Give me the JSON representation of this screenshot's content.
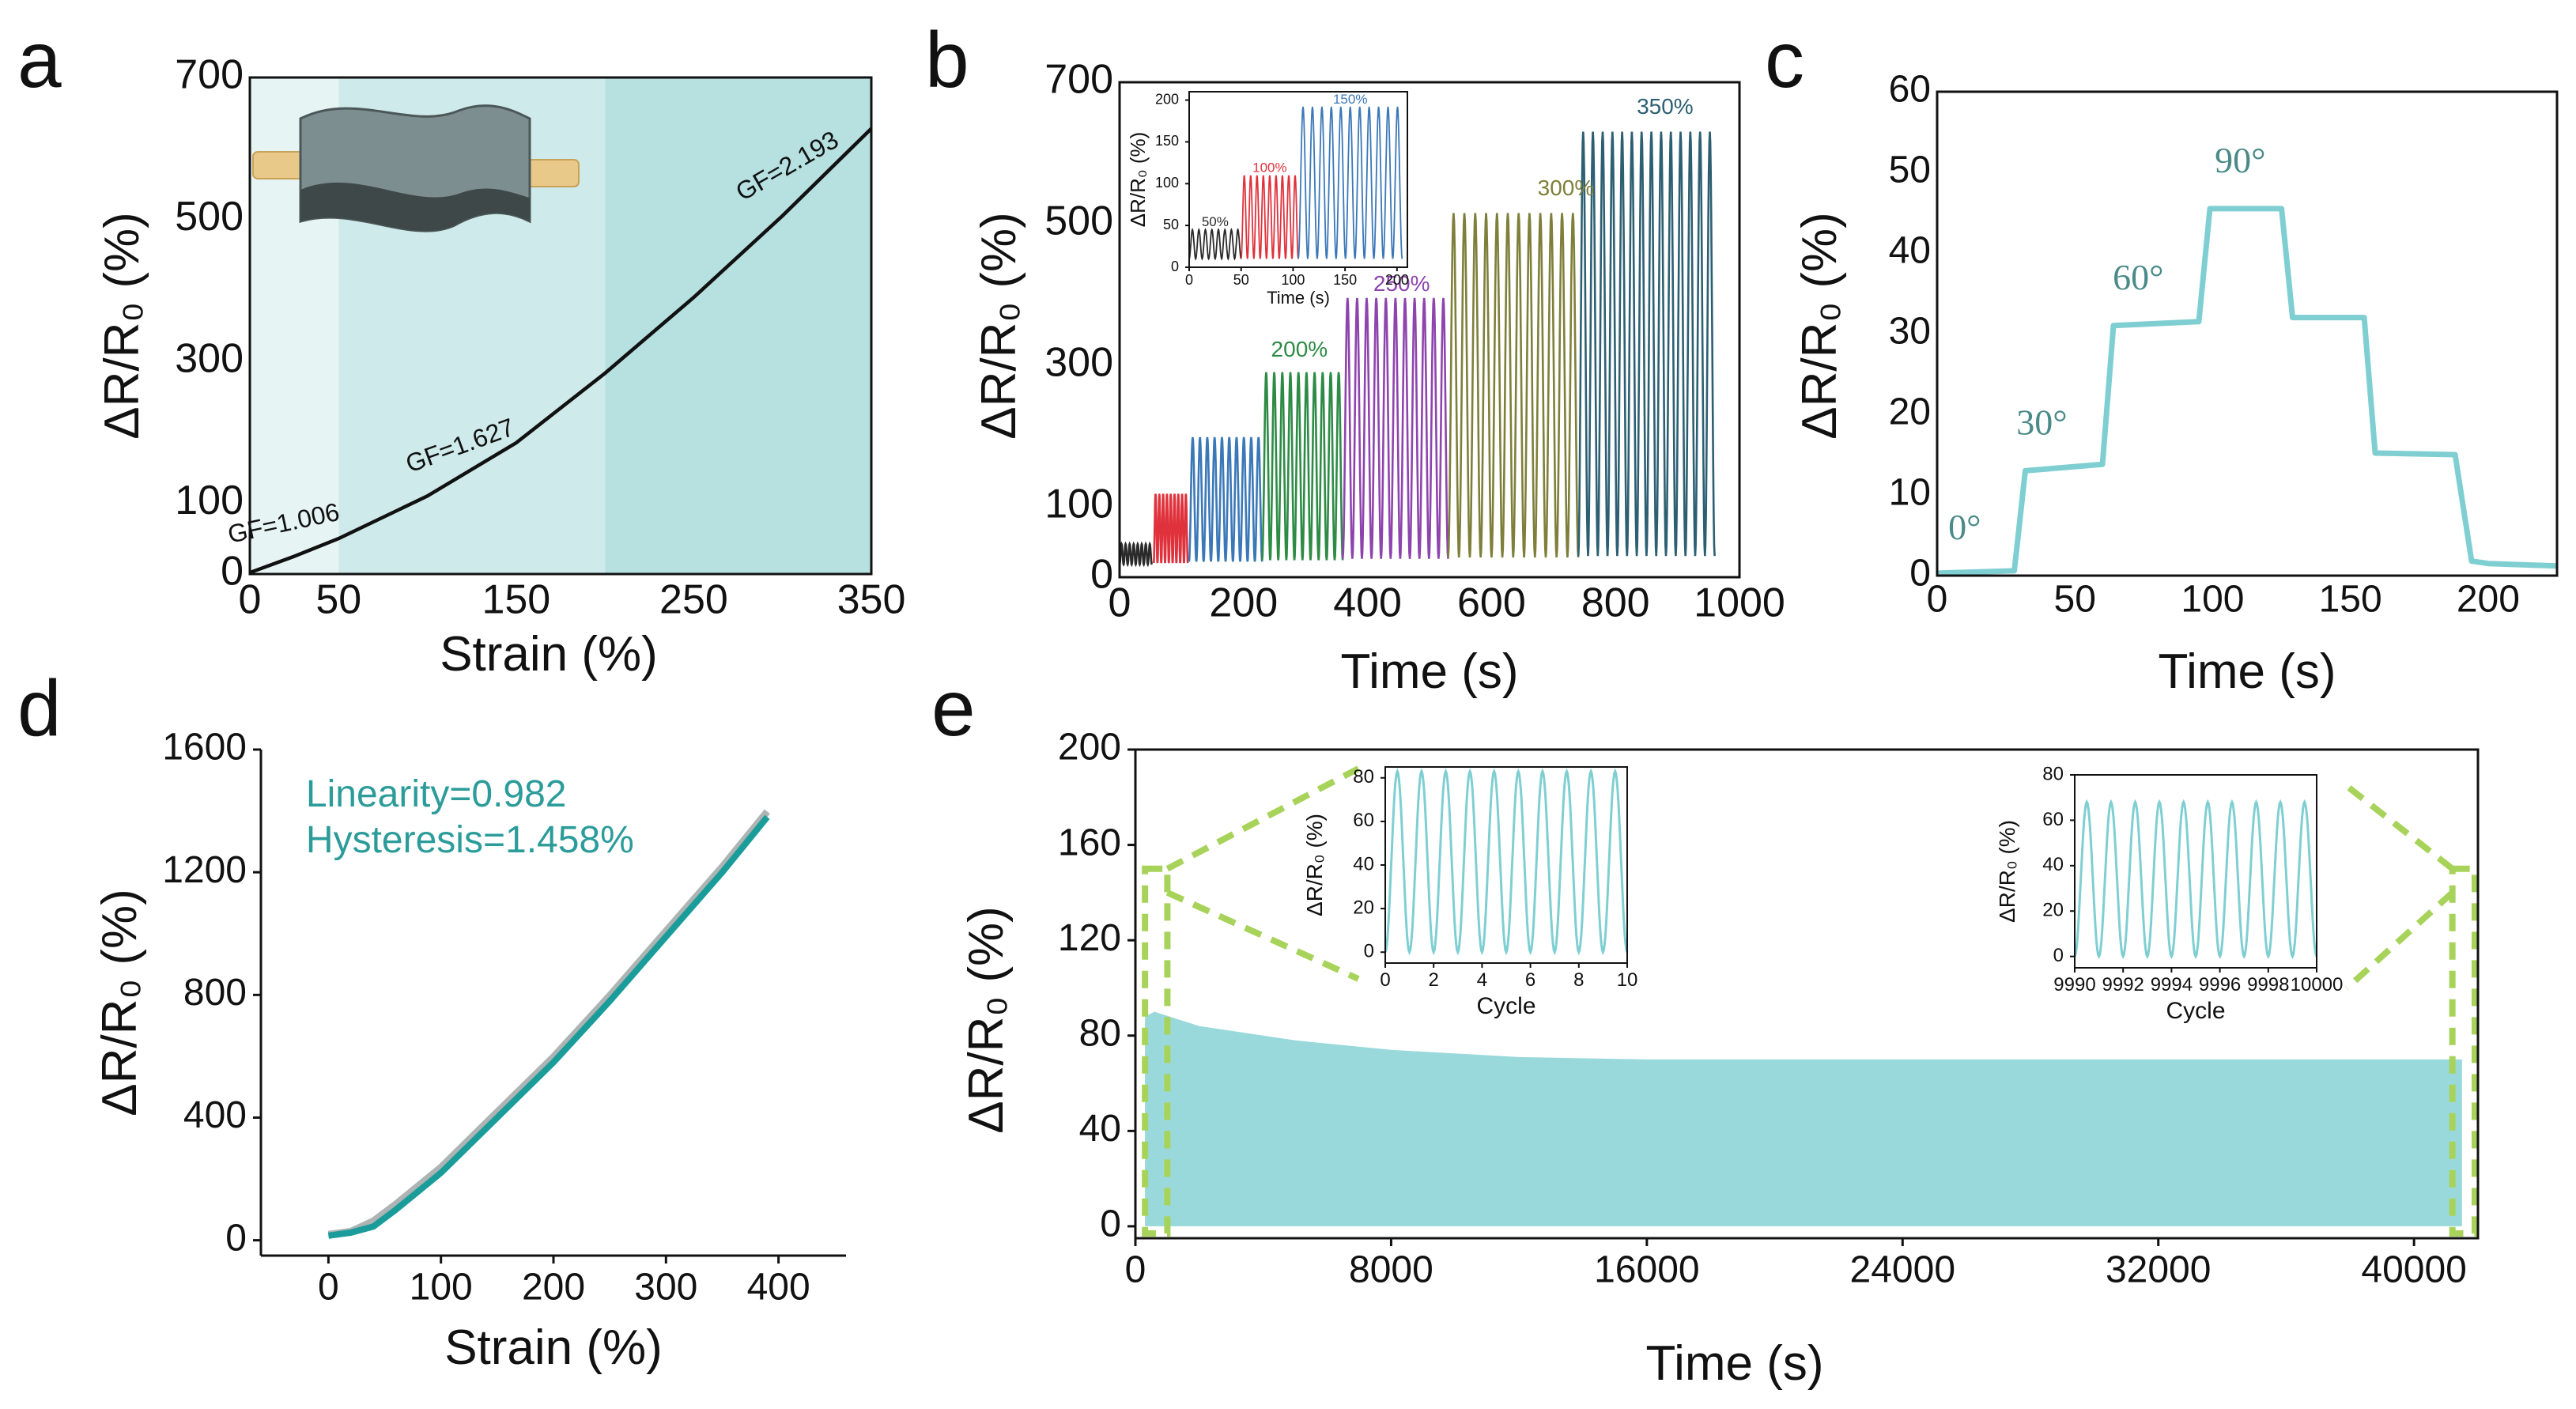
{
  "colors": {
    "teal": "#7fcfd2",
    "teal_dark": "#1a9d9a",
    "teal_label": "#2b9c9a",
    "shade1": "#e7f4f4",
    "shade2": "#cfeaea",
    "shade3": "#b7e0e0",
    "green_dash": "#a8d35a",
    "angle_label": "#4a8a88",
    "s50": "#2a2a2a",
    "s100": "#e0323c",
    "s150": "#3b78b8",
    "s200": "#2e8b46",
    "s250": "#8e44ad",
    "s300": "#7e7f3a",
    "s350": "#2d5f72"
  },
  "chart_data": [
    {
      "id": "a",
      "type": "line",
      "panel_label": "a",
      "xlabel": "Strain (%)",
      "ylabel": "ΔR/R₀ (%)",
      "xlim": [
        0,
        350
      ],
      "ylim": [
        0,
        700
      ],
      "xticks": [
        0,
        50,
        150,
        250,
        350
      ],
      "yticks": [
        0,
        100,
        300,
        500,
        700
      ],
      "regions": [
        [
          0,
          50
        ],
        [
          50,
          200
        ],
        [
          200,
          350
        ]
      ],
      "x": [
        0,
        25,
        50,
        100,
        150,
        200,
        250,
        300,
        350
      ],
      "y": [
        2,
        25,
        50,
        110,
        185,
        283,
        390,
        505,
        628
      ],
      "annotations": [
        "GF=1.006",
        "GF=1.627",
        "GF=2.193"
      ],
      "annotation_positions": [
        [
          20,
          60
        ],
        [
          120,
          170
        ],
        [
          305,
          565
        ]
      ]
    },
    {
      "id": "b",
      "type": "line",
      "panel_label": "b",
      "xlabel": "Time (s)",
      "ylabel": "ΔR/R₀ (%)",
      "xlim": [
        0,
        1000
      ],
      "ylim": [
        0,
        700
      ],
      "xticks": [
        0,
        200,
        400,
        600,
        800,
        1000
      ],
      "yticks": [
        0,
        100,
        300,
        500,
        700
      ],
      "series": [
        {
          "name": "50%",
          "t": [
            0,
            52
          ],
          "peak": 47,
          "cycles": 8
        },
        {
          "name": "100%",
          "t": [
            55,
            110
          ],
          "peak": 118,
          "cycles": 9
        },
        {
          "name": "150%",
          "t": [
            112,
            230
          ],
          "peak": 198,
          "cycles": 10
        },
        {
          "name": "200%",
          "t": [
            230,
            360
          ],
          "peak": 290,
          "cycles": 10
        },
        {
          "name": "250%",
          "t": [
            360,
            530
          ],
          "peak": 395,
          "cycles": 11
        },
        {
          "name": "300%",
          "t": [
            530,
            740
          ],
          "peak": 515,
          "cycles": 12
        },
        {
          "name": "350%",
          "t": [
            740,
            960
          ],
          "peak": 630,
          "cycles": 14
        }
      ],
      "label_positions": [
        [
          880,
          655
        ],
        [
          720,
          540
        ],
        [
          455,
          405
        ],
        [
          290,
          312
        ]
      ],
      "inset": {
        "xlabel": "Time (s)",
        "ylabel": "ΔR/R₀ (%)",
        "xlim": [
          0,
          210
        ],
        "ylim": [
          0,
          210
        ],
        "xticks": [
          0,
          50,
          100,
          150,
          200
        ],
        "yticks": [
          0,
          50,
          100,
          150,
          200
        ],
        "series": [
          {
            "name": "50%",
            "t": [
              0,
              50
            ],
            "peak": 45,
            "cycles": 8
          },
          {
            "name": "100%",
            "t": [
              50,
              105
            ],
            "peak": 110,
            "cycles": 9
          },
          {
            "name": "150%",
            "t": [
              105,
              205
            ],
            "peak": 192,
            "cycles": 11
          }
        ]
      }
    },
    {
      "id": "c",
      "type": "line",
      "panel_label": "c",
      "xlabel": "Time (s)",
      "ylabel": "ΔR/R₀ (%)",
      "xlim": [
        0,
        225
      ],
      "ylim": [
        0,
        60
      ],
      "xticks": [
        0,
        50,
        100,
        150,
        200
      ],
      "yticks": [
        0,
        10,
        20,
        30,
        40,
        50,
        60
      ],
      "x": [
        0,
        28,
        32,
        60,
        64,
        95,
        99,
        125,
        129,
        155,
        159,
        188,
        194,
        200,
        225
      ],
      "y": [
        0.3,
        0.6,
        13,
        13.8,
        31,
        31.5,
        45.5,
        45.5,
        32,
        32,
        15.2,
        15,
        1.8,
        1.5,
        1.2
      ],
      "annotations": [
        "0°",
        "30°",
        "60°",
        "90°"
      ],
      "annotation_positions": [
        [
          10,
          4.5
        ],
        [
          38,
          17.5
        ],
        [
          73,
          35.5
        ],
        [
          110,
          50
        ]
      ]
    },
    {
      "id": "d",
      "type": "line",
      "panel_label": "d",
      "xlabel": "Strain (%)",
      "ylabel": "ΔR/R₀ (%)",
      "xlim": [
        -60,
        460
      ],
      "ylim": [
        -50,
        1600
      ],
      "xticks": [
        0,
        100,
        200,
        300,
        400
      ],
      "yticks": [
        0,
        400,
        800,
        1200,
        1600
      ],
      "x": [
        0,
        20,
        40,
        60,
        100,
        150,
        200,
        250,
        300,
        350,
        390
      ],
      "y": [
        15,
        25,
        45,
        100,
        220,
        400,
        580,
        780,
        990,
        1200,
        1380
      ],
      "annotations": [
        "Linearity=0.982",
        "Hysteresis=1.458%"
      ],
      "annotation_positions": [
        [
          -20,
          1415
        ],
        [
          -20,
          1265
        ]
      ]
    },
    {
      "id": "e",
      "type": "area",
      "panel_label": "e",
      "xlabel": "Time (s)",
      "ylabel": "ΔR/R₀ (%)",
      "xlim": [
        0,
        42000
      ],
      "ylim": [
        -5,
        200
      ],
      "xticks": [
        0,
        8000,
        16000,
        24000,
        32000,
        40000
      ],
      "yticks": [
        0,
        40,
        80,
        120,
        160,
        200
      ],
      "upper_x": [
        300,
        600,
        2000,
        5000,
        8000,
        12000,
        16000,
        24000,
        32000,
        41500
      ],
      "upper_y": [
        88,
        90,
        84,
        78,
        74,
        71,
        70,
        70,
        70,
        70
      ],
      "lower_y": 0,
      "highlight_boxes": [
        [
          300,
          1000
        ],
        [
          41200,
          41900
        ]
      ],
      "inset_left": {
        "xlabel": "Cycle",
        "ylabel": "ΔR/R₀ (%)",
        "xlim": [
          0,
          10
        ],
        "ylim": [
          -5,
          85
        ],
        "xticks": [
          0,
          2,
          4,
          6,
          8,
          10
        ],
        "tick_labels": [
          "0",
          "2",
          "4",
          "6",
          "8",
          "10"
        ],
        "yticks": [
          0,
          20,
          40,
          60,
          80
        ],
        "peak": 83,
        "cycles": 10
      },
      "inset_right": {
        "xlabel": "Cycle",
        "ylabel": "ΔR/R₀ (%)",
        "xlim": [
          9990,
          10000
        ],
        "ylim": [
          -5,
          80
        ],
        "xticks": [
          9990,
          9992,
          9994,
          9996,
          9998,
          10000
        ],
        "tick_labels": [
          "9990",
          "9992",
          "9994",
          "9996",
          "9998",
          "10000"
        ],
        "yticks": [
          0,
          20,
          40,
          60,
          80
        ],
        "peak": 68,
        "cycles": 10
      }
    }
  ]
}
